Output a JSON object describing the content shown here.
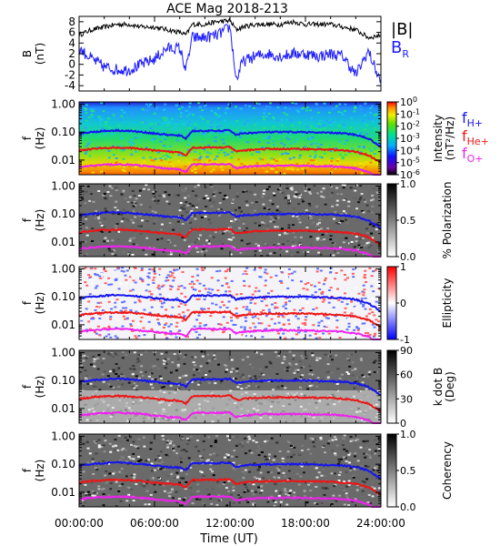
{
  "title": "ACE Mag 2018-213",
  "xaxis": {
    "label": "Time (UT)",
    "tick_labels": [
      "00:00:00",
      "06:00:00",
      "12:00:00",
      "18:00:00",
      "24:00:00"
    ],
    "range_hours": [
      0,
      24
    ]
  },
  "legend_top": {
    "total": "|B|",
    "radial": "B",
    "radial_sub": "R"
  },
  "legend_freq": {
    "h": {
      "main": "f",
      "sub": "H+"
    },
    "he": {
      "main": "f",
      "sub": "He+"
    },
    "o": {
      "main": "f",
      "sub": "O+"
    }
  },
  "colors": {
    "total_field": "#000000",
    "radial_field": "#1c1cff",
    "f_h": "#1515ee",
    "f_he": "#ee1515",
    "f_o": "#ee22ee"
  },
  "panels": [
    {
      "id": "b",
      "ylabel": "B",
      "yunit": "(nT)",
      "yticks": [
        "8",
        "6",
        "4",
        "2",
        "0",
        "-2",
        "-4"
      ],
      "ylim": [
        -5,
        9
      ]
    },
    {
      "id": "intensity",
      "ylabel": "f",
      "yunit": "(Hz)",
      "yticks": [
        "1.00",
        "0.10",
        "0.01"
      ],
      "cbar_title": "Intensity",
      "cbar_unit": "(nT²/Hz)",
      "cbar_ticks": [
        {
          "base": "10",
          "exp": "0"
        },
        {
          "base": "10",
          "exp": "-1"
        },
        {
          "base": "10",
          "exp": "-2"
        },
        {
          "base": "10",
          "exp": "-3"
        },
        {
          "base": "10",
          "exp": "-4"
        },
        {
          "base": "10",
          "exp": "-5"
        },
        {
          "base": "10",
          "exp": "-6"
        }
      ]
    },
    {
      "id": "polarization",
      "ylabel": "f",
      "yunit": "(Hz)",
      "yticks": [
        "1.00",
        "0.10",
        "0.01"
      ],
      "cbar_title": "% Polarization",
      "cbar_ticks": [
        "1.0",
        "0.5",
        "0.0"
      ]
    },
    {
      "id": "ellipticity",
      "ylabel": "f",
      "yunit": "(Hz)",
      "yticks": [
        "1.00",
        "0.10",
        "0.01"
      ],
      "cbar_title": "Ellipticity",
      "cbar_ticks": [
        "1",
        "0",
        "-1"
      ]
    },
    {
      "id": "kdotb",
      "ylabel": "f",
      "yunit": "(Hz)",
      "yticks": [
        "1.00",
        "0.10",
        "0.01"
      ],
      "cbar_title": "k dot B",
      "cbar_unit": "(Deg)",
      "cbar_ticks": [
        "90",
        "60",
        "30",
        "0"
      ]
    },
    {
      "id": "coherency",
      "ylabel": "f",
      "yunit": "(Hz)",
      "yticks": [
        "1.00",
        "0.10",
        "0.01"
      ],
      "cbar_title": "Coherency",
      "cbar_ticks": [
        "1.0",
        "0.5",
        "0.0"
      ]
    }
  ],
  "chart_data": [
    {
      "type": "line",
      "xlabel": "Time (UT)",
      "ylabel": "B (nT)",
      "ylim": [
        -5,
        9
      ],
      "x": [
        0,
        1,
        2,
        3,
        4,
        5,
        6,
        7,
        8,
        8.5,
        9,
        10,
        11,
        12,
        12.5,
        13,
        14,
        15,
        16,
        17,
        18,
        19,
        20,
        21,
        22,
        23,
        24
      ],
      "series": [
        {
          "name": "|B|",
          "values": [
            5.5,
            6.5,
            7,
            7.5,
            7.5,
            7,
            7,
            6.5,
            6,
            5.5,
            7.5,
            7.5,
            8,
            8.2,
            6.5,
            7,
            7.5,
            7.5,
            7.5,
            8,
            7.5,
            7.5,
            7.5,
            7,
            6.5,
            5,
            5.5
          ]
        },
        {
          "name": "B_R",
          "values": [
            3,
            1,
            -0.5,
            -1,
            -1,
            0,
            1,
            3,
            3,
            -1,
            5,
            5,
            5.5,
            7,
            -3,
            0.5,
            1.5,
            2,
            1.5,
            2,
            2,
            1.5,
            2,
            1.5,
            -2,
            2.5,
            -3.5
          ]
        }
      ]
    },
    {
      "type": "line",
      "xlabel": "Time (UT)",
      "ylabel": "f (Hz)",
      "yscale": "log",
      "ylim": [
        0.003,
        1.2
      ],
      "x": [
        0,
        1,
        2,
        3,
        4,
        5,
        6,
        7,
        8,
        8.5,
        9,
        10,
        11,
        12,
        12.5,
        13,
        14,
        15,
        16,
        17,
        18,
        19,
        20,
        21,
        22,
        23,
        24
      ],
      "series": [
        {
          "name": "f_H+",
          "values": [
            0.09,
            0.1,
            0.11,
            0.115,
            0.11,
            0.1,
            0.09,
            0.08,
            0.075,
            0.06,
            0.11,
            0.11,
            0.11,
            0.115,
            0.08,
            0.09,
            0.095,
            0.1,
            0.1,
            0.1,
            0.1,
            0.095,
            0.095,
            0.09,
            0.08,
            0.06,
            0.03
          ]
        },
        {
          "name": "f_He+",
          "values": [
            0.022,
            0.025,
            0.027,
            0.028,
            0.027,
            0.025,
            0.022,
            0.02,
            0.019,
            0.015,
            0.028,
            0.028,
            0.028,
            0.029,
            0.02,
            0.022,
            0.024,
            0.025,
            0.025,
            0.025,
            0.025,
            0.024,
            0.024,
            0.022,
            0.02,
            0.015,
            0.008
          ]
        },
        {
          "name": "f_O+",
          "values": [
            0.0056,
            0.0063,
            0.0068,
            0.007,
            0.0068,
            0.0063,
            0.0056,
            0.005,
            0.0047,
            0.0038,
            0.007,
            0.007,
            0.007,
            0.0072,
            0.005,
            0.0056,
            0.006,
            0.0063,
            0.0063,
            0.0063,
            0.0063,
            0.006,
            0.006,
            0.0056,
            0.005,
            0.0038,
            0.002
          ]
        }
      ]
    }
  ]
}
